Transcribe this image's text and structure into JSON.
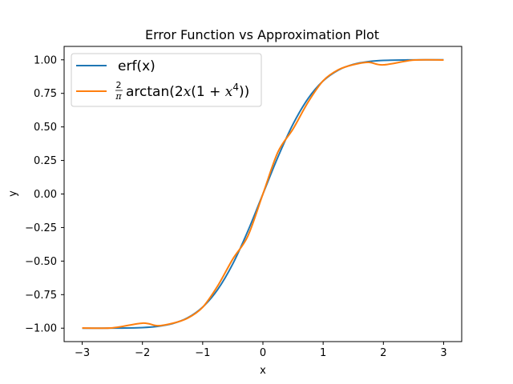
{
  "chart_data": {
    "type": "line",
    "title": "Error Function vs Approximation Plot",
    "xlabel": "x",
    "ylabel": "y",
    "xlim": [
      -3.3,
      3.3
    ],
    "ylim": [
      -1.1,
      1.1
    ],
    "xticks": [
      -3,
      -2,
      -1,
      0,
      1,
      2,
      3
    ],
    "xtick_labels": [
      "−3",
      "−2",
      "−1",
      "0",
      "1",
      "2",
      "3"
    ],
    "yticks": [
      -1.0,
      -0.75,
      -0.5,
      -0.25,
      0.0,
      0.25,
      0.5,
      0.75,
      1.0
    ],
    "ytick_labels": [
      "−1.00",
      "−0.75",
      "−0.50",
      "−0.25",
      "0.00",
      "0.25",
      "0.50",
      "0.75",
      "1.00"
    ],
    "grid": false,
    "legend_position": "upper-left",
    "series": [
      {
        "name": "erf(x)",
        "color": "#1f77b4",
        "x": [
          -3.0,
          -2.5,
          -2.0,
          -1.75,
          -1.5,
          -1.25,
          -1.0,
          -0.75,
          -0.5,
          -0.25,
          0.0,
          0.25,
          0.5,
          0.75,
          1.0,
          1.25,
          1.5,
          1.75,
          2.0,
          2.5,
          3.0
        ],
        "y": [
          -1.0,
          -0.9996,
          -0.9953,
          -0.9867,
          -0.9661,
          -0.9229,
          -0.8427,
          -0.7112,
          -0.5205,
          -0.2763,
          0.0,
          0.2763,
          0.5205,
          0.7112,
          0.8427,
          0.9229,
          0.9661,
          0.9867,
          0.9953,
          0.9996,
          1.0
        ]
      },
      {
        "name": "\\frac{2}{\\pi}\\arctan(2x(1+x^4))",
        "color": "#ff7f0e",
        "x": [
          -3.0,
          -2.5,
          -2.0,
          -1.75,
          -1.5,
          -1.25,
          -1.0,
          -0.75,
          -0.5,
          -0.25,
          0.0,
          0.25,
          0.5,
          0.75,
          1.0,
          1.25,
          1.5,
          1.75,
          2.0,
          2.5,
          3.0
        ],
        "y": [
          -0.9987,
          -0.9976,
          -0.9625,
          -0.9817,
          -0.9636,
          -0.9256,
          -0.844,
          -0.6846,
          -0.4848,
          -0.3131,
          0.0,
          0.3131,
          0.4848,
          0.6846,
          0.844,
          0.9256,
          0.9636,
          0.9817,
          0.9625,
          0.9976,
          0.9987
        ]
      }
    ]
  },
  "legend": {
    "erf_label": "erf(x)",
    "approx_label": {
      "num": "2",
      "den": "π",
      "fn": "arctan(2",
      "x1": "x",
      "mid": "(1 + ",
      "x2": "x",
      "exp": "4",
      "end": "))"
    }
  }
}
